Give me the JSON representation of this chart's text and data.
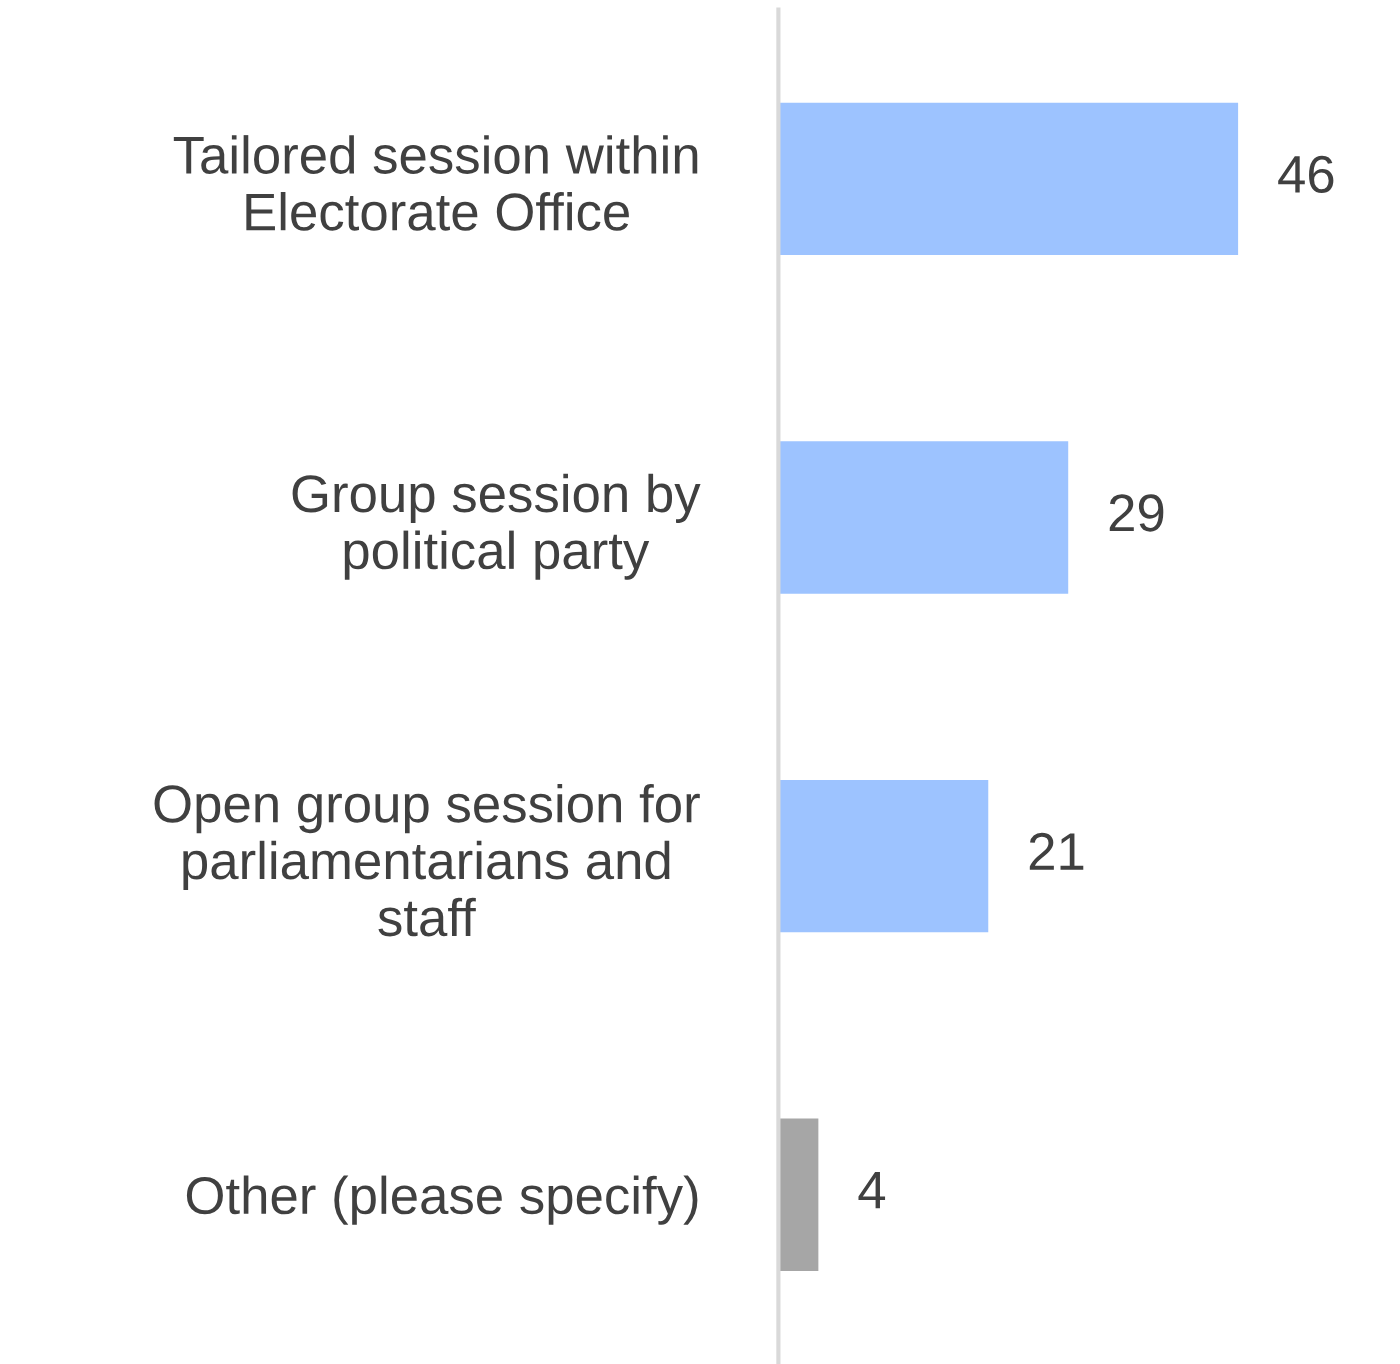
{
  "chart_data": {
    "type": "bar",
    "orientation": "horizontal",
    "categories": [
      "Tailored session within\nElectorate Office",
      "Group session by\npolitical party",
      "Open group session for\nparliamentarians and\nstaff",
      "Other (please specify)"
    ],
    "values": [
      46,
      29,
      21,
      4
    ],
    "colors": [
      "#9dc3ff",
      "#9dc3ff",
      "#9dc3ff",
      "#a6a6a6"
    ],
    "data_labels": true,
    "grid": false,
    "legend": false
  }
}
